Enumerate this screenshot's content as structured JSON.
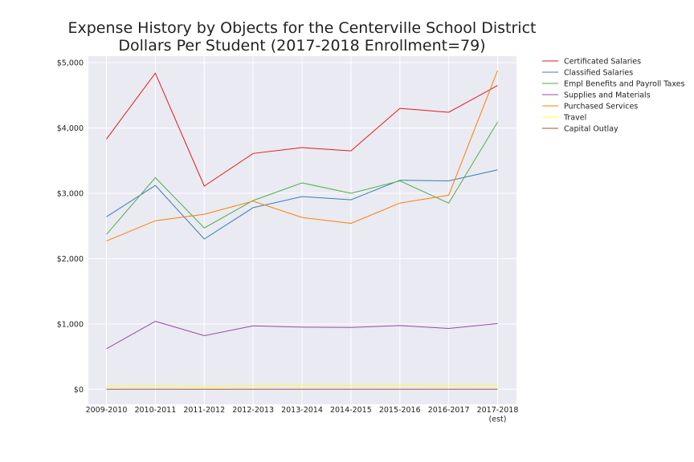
{
  "chart_data": {
    "type": "line",
    "title": "Expense History by Objects for the Centerville School District",
    "subtitle": "Dollars Per Student (2017-2018 Enrollment=79)",
    "xlabel": "",
    "ylabel": "",
    "categories": [
      "2009-2010",
      "2010-2011",
      "2011-2012",
      "2012-2013",
      "2013-2014",
      "2014-2015",
      "2015-2016",
      "2016-2017",
      "2017-2018\n(est)"
    ],
    "y_ticks": [
      0,
      1000,
      2000,
      3000,
      4000,
      5000
    ],
    "y_tick_labels": [
      "$0",
      "$1,000",
      "$2,000",
      "$3,000",
      "$4,000",
      "$5,000"
    ],
    "ylim": [
      -230,
      5100
    ],
    "grid": true,
    "legend_position": "outside-top-right",
    "series": [
      {
        "name": "Certificated Salaries",
        "color": "#e41a1c",
        "values": [
          3830,
          4840,
          3110,
          3610,
          3700,
          3650,
          4300,
          4240,
          4650
        ]
      },
      {
        "name": "Classified Salaries",
        "color": "#377eb8",
        "values": [
          2640,
          3120,
          2300,
          2780,
          2950,
          2900,
          3200,
          3190,
          3360
        ]
      },
      {
        "name": "Empl Benefits and Payroll Taxes",
        "color": "#4daf4a",
        "values": [
          2370,
          3240,
          2470,
          2890,
          3160,
          3000,
          3190,
          2850,
          4090
        ]
      },
      {
        "name": "Supplies and Materials",
        "color": "#984ea3",
        "values": [
          620,
          1040,
          820,
          970,
          950,
          945,
          975,
          930,
          1005
        ]
      },
      {
        "name": "Purchased Services",
        "color": "#ff7f00",
        "values": [
          2270,
          2580,
          2680,
          2880,
          2630,
          2540,
          2850,
          2970,
          4880
        ]
      },
      {
        "name": "Travel",
        "color": "#ffff33",
        "values": [
          50,
          55,
          45,
          55,
          65,
          55,
          65,
          55,
          65
        ]
      },
      {
        "name": "Capital Outlay",
        "color": "#a65628",
        "values": [
          0,
          0,
          0,
          0,
          0,
          0,
          0,
          0,
          0
        ]
      }
    ]
  }
}
